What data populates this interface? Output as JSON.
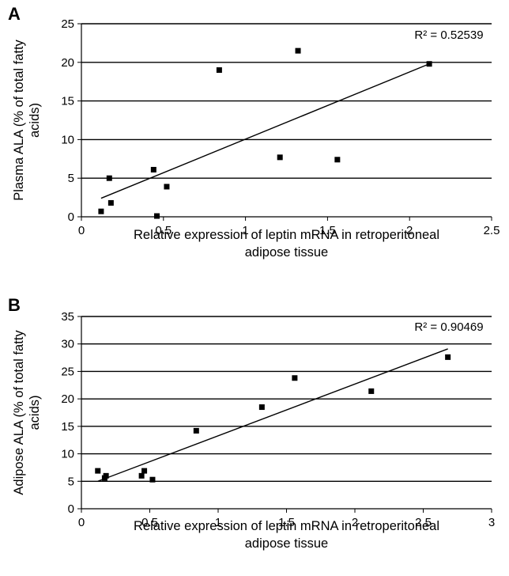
{
  "chart_data": [
    {
      "type": "scatter",
      "panel_label": "A",
      "ylabel_lines": [
        "Plasma ALA (% of total fatty",
        "acids)"
      ],
      "xlabel_lines": [
        "Relative expression of leptin mRNA in retroperitoneal",
        "adipose tissue"
      ],
      "xlim": [
        0,
        2.5
      ],
      "ylim": [
        0,
        25
      ],
      "x_ticks": [
        "0",
        "0.5",
        "1",
        "1.5",
        "2",
        "2.5"
      ],
      "y_ticks": [
        "0",
        "5",
        "10",
        "15",
        "20",
        "25"
      ],
      "grid": "horizontal",
      "annotation": "R² = 0.52539",
      "points": [
        {
          "x": 0.12,
          "y": 0.7
        },
        {
          "x": 0.17,
          "y": 5.0
        },
        {
          "x": 0.18,
          "y": 1.8
        },
        {
          "x": 0.44,
          "y": 6.1
        },
        {
          "x": 0.46,
          "y": 0.1
        },
        {
          "x": 0.52,
          "y": 3.9
        },
        {
          "x": 0.84,
          "y": 19.0
        },
        {
          "x": 1.21,
          "y": 7.7
        },
        {
          "x": 1.32,
          "y": 21.5
        },
        {
          "x": 1.56,
          "y": 7.4
        },
        {
          "x": 2.12,
          "y": 19.8
        }
      ],
      "trendline": {
        "x": [
          0.12,
          2.12
        ],
        "y": [
          2.4,
          19.8
        ]
      }
    },
    {
      "type": "scatter",
      "panel_label": "B",
      "ylabel_lines": [
        "Adipose ALA (% of total fatty",
        "acids)"
      ],
      "xlabel_lines": [
        "Relative expression of leptin mRNA in retroperitoneal",
        "adipose tissue"
      ],
      "xlim": [
        0,
        3
      ],
      "ylim": [
        0,
        35
      ],
      "x_ticks": [
        "0",
        "0.5",
        "1",
        "1.5",
        "2",
        "2.5",
        "3"
      ],
      "y_ticks": [
        "0",
        "5",
        "10",
        "15",
        "20",
        "25",
        "30",
        "35"
      ],
      "grid": "horizontal",
      "annotation": "R² = 0.90469",
      "points": [
        {
          "x": 0.12,
          "y": 6.9
        },
        {
          "x": 0.17,
          "y": 5.6
        },
        {
          "x": 0.18,
          "y": 6.0
        },
        {
          "x": 0.44,
          "y": 6.0
        },
        {
          "x": 0.46,
          "y": 6.9
        },
        {
          "x": 0.52,
          "y": 5.3
        },
        {
          "x": 0.84,
          "y": 14.2
        },
        {
          "x": 1.32,
          "y": 18.5
        },
        {
          "x": 1.56,
          "y": 23.8
        },
        {
          "x": 2.12,
          "y": 21.4
        },
        {
          "x": 2.68,
          "y": 27.6
        }
      ],
      "trendline": {
        "x": [
          0.12,
          2.68
        ],
        "y": [
          5.0,
          29.1
        ]
      }
    }
  ]
}
